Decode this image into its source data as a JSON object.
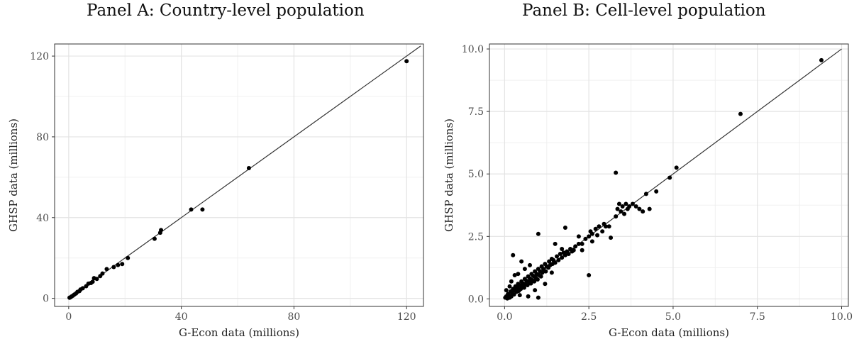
{
  "chart_data": [
    {
      "type": "scatter",
      "title": "Panel A: Country-level population",
      "xlabel": "G-Econ data (millions)",
      "ylabel": "GHSP data (millions)",
      "xlim": [
        -5,
        126
      ],
      "ylim": [
        -4,
        126
      ],
      "xticks": [
        0,
        40,
        80,
        120
      ],
      "yticks": [
        0,
        40,
        80,
        120
      ],
      "xtick_labels": [
        "0",
        "40",
        "80",
        "120"
      ],
      "ytick_labels": [
        "0",
        "40",
        "80",
        "120"
      ],
      "grid": true,
      "reference_line": {
        "x": [
          0,
          125
        ],
        "y": [
          0,
          125
        ]
      },
      "points": [
        [
          0.3,
          0.3
        ],
        [
          0.6,
          0.5
        ],
        [
          1.0,
          0.9
        ],
        [
          1.5,
          1.3
        ],
        [
          2.0,
          1.9
        ],
        [
          2.6,
          2.4
        ],
        [
          3.1,
          3.2
        ],
        [
          3.8,
          3.6
        ],
        [
          4.2,
          4.4
        ],
        [
          5.0,
          5.0
        ],
        [
          6.2,
          6.0
        ],
        [
          7.0,
          7.3
        ],
        [
          7.9,
          7.6
        ],
        [
          8.5,
          8.2
        ],
        [
          9.0,
          10.0
        ],
        [
          10.0,
          9.6
        ],
        [
          11.2,
          11.0
        ],
        [
          12.0,
          12.3
        ],
        [
          13.5,
          14.5
        ],
        [
          16.0,
          15.5
        ],
        [
          17.5,
          16.5
        ],
        [
          19.0,
          17.0
        ],
        [
          21.0,
          20.0
        ],
        [
          30.5,
          29.5
        ],
        [
          32.5,
          32.5
        ],
        [
          32.8,
          33.8
        ],
        [
          43.5,
          44.0
        ],
        [
          47.5,
          44.0
        ],
        [
          64.0,
          64.5
        ],
        [
          120.0,
          117.5
        ]
      ]
    },
    {
      "type": "scatter",
      "title": "Panel B: Cell-level population",
      "xlabel": "G-Econ data (millions)",
      "ylabel": "GHSP data (millions)",
      "xlim": [
        -0.45,
        10.2
      ],
      "ylim": [
        -0.3,
        10.2
      ],
      "xticks": [
        0,
        2.5,
        5.0,
        7.5,
        10.0
      ],
      "yticks": [
        0,
        2.5,
        5.0,
        7.5,
        10.0
      ],
      "xtick_labels": [
        "0.0",
        "2.5",
        "5.0",
        "7.5",
        "10.0"
      ],
      "ytick_labels": [
        "0.0",
        "2.5",
        "5.0",
        "7.5",
        "10.0"
      ],
      "grid": true,
      "reference_line": {
        "x": [
          0,
          10
        ],
        "y": [
          0,
          10
        ]
      },
      "points": [
        [
          0.02,
          0.05
        ],
        [
          0.05,
          0.1
        ],
        [
          0.08,
          0.02
        ],
        [
          0.1,
          0.2
        ],
        [
          0.12,
          0.15
        ],
        [
          0.15,
          0.05
        ],
        [
          0.18,
          0.3
        ],
        [
          0.2,
          0.1
        ],
        [
          0.22,
          0.25
        ],
        [
          0.25,
          0.4
        ],
        [
          0.28,
          0.18
        ],
        [
          0.3,
          0.35
        ],
        [
          0.32,
          0.5
        ],
        [
          0.35,
          0.28
        ],
        [
          0.38,
          0.45
        ],
        [
          0.4,
          0.6
        ],
        [
          0.42,
          0.32
        ],
        [
          0.45,
          0.55
        ],
        [
          0.48,
          0.4
        ],
        [
          0.5,
          0.7
        ],
        [
          0.52,
          0.5
        ],
        [
          0.55,
          0.62
        ],
        [
          0.58,
          0.45
        ],
        [
          0.6,
          0.8
        ],
        [
          0.62,
          0.58
        ],
        [
          0.65,
          0.72
        ],
        [
          0.68,
          0.55
        ],
        [
          0.7,
          0.9
        ],
        [
          0.72,
          0.68
        ],
        [
          0.75,
          0.82
        ],
        [
          0.78,
          0.62
        ],
        [
          0.8,
          1.0
        ],
        [
          0.82,
          0.75
        ],
        [
          0.85,
          0.92
        ],
        [
          0.88,
          0.7
        ],
        [
          0.9,
          1.1
        ],
        [
          0.92,
          0.85
        ],
        [
          0.95,
          1.0
        ],
        [
          0.98,
          0.78
        ],
        [
          1.0,
          1.2
        ],
        [
          1.02,
          0.95
        ],
        [
          1.05,
          1.1
        ],
        [
          1.08,
          0.9
        ],
        [
          1.1,
          1.3
        ],
        [
          1.12,
          1.05
        ],
        [
          1.15,
          1.2
        ],
        [
          1.2,
          1.4
        ],
        [
          1.22,
          1.1
        ],
        [
          1.25,
          1.3
        ],
        [
          1.3,
          1.25
        ],
        [
          1.32,
          1.5
        ],
        [
          1.35,
          1.35
        ],
        [
          1.4,
          1.6
        ],
        [
          1.42,
          1.4
        ],
        [
          1.45,
          1.55
        ],
        [
          1.5,
          1.45
        ],
        [
          1.55,
          1.7
        ],
        [
          1.6,
          1.55
        ],
        [
          1.65,
          1.8
        ],
        [
          1.7,
          1.65
        ],
        [
          1.75,
          1.85
        ],
        [
          1.8,
          1.75
        ],
        [
          1.85,
          1.9
        ],
        [
          1.9,
          1.8
        ],
        [
          1.95,
          2.0
        ],
        [
          2.0,
          1.9
        ],
        [
          2.05,
          1.95
        ],
        [
          2.1,
          2.1
        ],
        [
          2.2,
          2.2
        ],
        [
          2.3,
          2.2
        ],
        [
          2.4,
          2.4
        ],
        [
          2.5,
          2.5
        ],
        [
          2.55,
          2.7
        ],
        [
          2.6,
          2.6
        ],
        [
          2.7,
          2.8
        ],
        [
          2.75,
          2.55
        ],
        [
          2.8,
          2.9
        ],
        [
          2.9,
          2.7
        ],
        [
          2.95,
          3.0
        ],
        [
          3.0,
          2.9
        ],
        [
          3.1,
          2.9
        ],
        [
          3.15,
          2.45
        ],
        [
          3.3,
          3.3
        ],
        [
          3.35,
          3.6
        ],
        [
          3.4,
          3.8
        ],
        [
          3.45,
          3.5
        ],
        [
          3.5,
          3.7
        ],
        [
          3.55,
          3.4
        ],
        [
          3.6,
          3.8
        ],
        [
          3.65,
          3.6
        ],
        [
          3.7,
          3.7
        ],
        [
          3.8,
          3.8
        ],
        [
          3.9,
          3.7
        ],
        [
          4.0,
          3.6
        ],
        [
          4.1,
          3.5
        ],
        [
          4.2,
          4.2
        ],
        [
          4.3,
          3.6
        ],
        [
          4.5,
          4.3
        ],
        [
          4.9,
          4.85
        ],
        [
          5.1,
          5.25
        ],
        [
          7.0,
          7.4
        ],
        [
          9.4,
          9.55
        ],
        [
          3.3,
          5.05
        ],
        [
          1.8,
          2.85
        ],
        [
          1.0,
          2.6
        ],
        [
          0.25,
          1.75
        ],
        [
          0.5,
          1.5
        ],
        [
          2.5,
          0.95
        ],
        [
          0.7,
          0.1
        ],
        [
          1.0,
          0.05
        ],
        [
          0.3,
          0.95
        ],
        [
          0.6,
          1.2
        ],
        [
          0.4,
          1.0
        ],
        [
          0.2,
          0.7
        ],
        [
          1.5,
          2.2
        ],
        [
          1.2,
          0.6
        ],
        [
          0.9,
          0.35
        ],
        [
          0.15,
          0.5
        ],
        [
          2.2,
          2.5
        ],
        [
          1.7,
          2.0
        ],
        [
          2.6,
          2.3
        ],
        [
          2.3,
          1.95
        ],
        [
          1.4,
          1.05
        ],
        [
          0.75,
          1.35
        ],
        [
          0.45,
          0.15
        ],
        [
          0.05,
          0.35
        ]
      ]
    }
  ]
}
